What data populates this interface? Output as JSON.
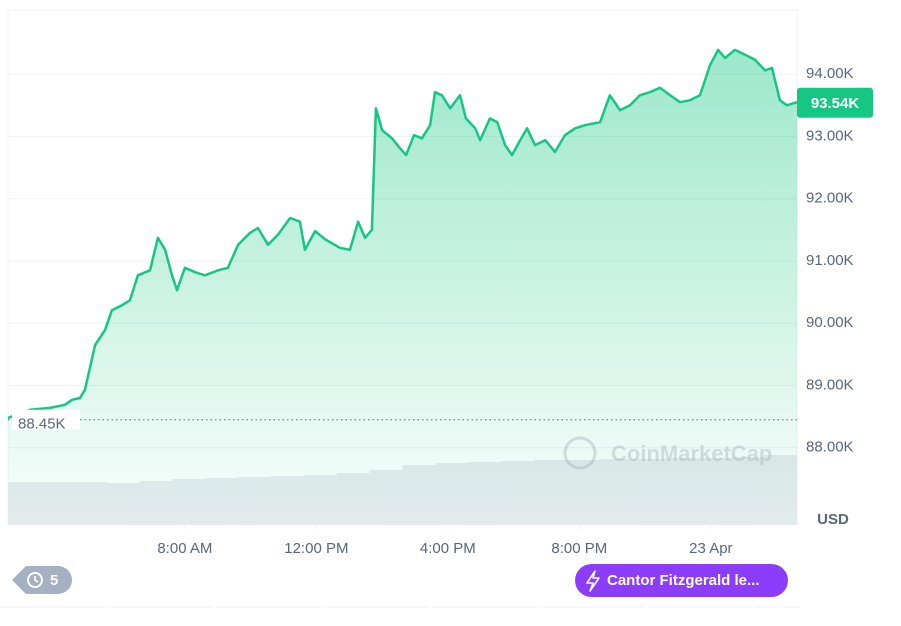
{
  "chart_data": {
    "type": "line",
    "xlim": [
      0,
      24
    ],
    "xticks": [
      {
        "value": 5.38,
        "label": "8:00 AM"
      },
      {
        "value": 9.38,
        "label": "12:00 PM"
      },
      {
        "value": 13.38,
        "label": "4:00 PM"
      },
      {
        "value": 17.38,
        "label": "8:00 PM"
      },
      {
        "value": 21.38,
        "label": "23 Apr"
      }
    ],
    "ylim": [
      86760,
      95030
    ],
    "yticks": [
      {
        "value": 88000,
        "label": "88.00K"
      },
      {
        "value": 89000,
        "label": "89.00K"
      },
      {
        "value": 90000,
        "label": "90.00K"
      },
      {
        "value": 91000,
        "label": "91.00K"
      },
      {
        "value": 92000,
        "label": "92.00K"
      },
      {
        "value": 93000,
        "label": "93.00K"
      },
      {
        "value": 94000,
        "label": "94.00K"
      }
    ],
    "grid": true,
    "currency": "USD",
    "open_price": {
      "value": 88450,
      "label": "88.45K"
    },
    "current_price": {
      "value": 93540,
      "label": "93.54K"
    },
    "watermark": "CoinMarketCap",
    "history_badge": "5",
    "news_badge": "Cantor Fitzgerald le...",
    "series": [
      {
        "color": "#16c784",
        "x": [
          0,
          0.67,
          1.28,
          1.73,
          1.95,
          2.19,
          2.34,
          2.65,
          2.95,
          3.16,
          3.47,
          3.71,
          3.95,
          4.32,
          4.56,
          4.78,
          4.99,
          5.14,
          5.38,
          5.69,
          5.99,
          6.39,
          6.69,
          7.0,
          7.36,
          7.6,
          7.91,
          8.21,
          8.58,
          8.88,
          9.03,
          9.34,
          9.64,
          10.1,
          10.4,
          10.65,
          10.86,
          11.07,
          11.19,
          11.38,
          11.68,
          11.92,
          12.11,
          12.35,
          12.59,
          12.84,
          12.99,
          13.2,
          13.45,
          13.75,
          13.93,
          14.21,
          14.36,
          14.66,
          14.88,
          15.12,
          15.33,
          15.58,
          15.79,
          16.03,
          16.34,
          16.64,
          16.94,
          17.25,
          17.55,
          18.01,
          18.31,
          18.62,
          18.92,
          19.22,
          19.53,
          19.83,
          20.14,
          20.44,
          20.74,
          21.05,
          21.35,
          21.6,
          21.81,
          22.11,
          22.42,
          22.72,
          23.03,
          23.24,
          23.48,
          23.69,
          24
        ],
        "values": [
          88480,
          88610,
          88640,
          88690,
          88770,
          88800,
          88930,
          89650,
          89890,
          90210,
          90290,
          90370,
          90770,
          90850,
          91370,
          91180,
          90770,
          90530,
          90890,
          90820,
          90770,
          90850,
          90890,
          91260,
          91450,
          91530,
          91260,
          91420,
          91690,
          91630,
          91180,
          91480,
          91350,
          91210,
          91180,
          91630,
          91370,
          91500,
          93450,
          93100,
          92970,
          92810,
          92700,
          93020,
          92970,
          93180,
          93710,
          93660,
          93450,
          93660,
          93290,
          93130,
          92940,
          93290,
          93230,
          92860,
          92700,
          92940,
          93130,
          92860,
          92940,
          92750,
          93020,
          93130,
          93180,
          93230,
          93660,
          93420,
          93500,
          93660,
          93710,
          93780,
          93660,
          93550,
          93580,
          93660,
          94140,
          94390,
          94260,
          94390,
          94310,
          94230,
          94060,
          94100,
          93580,
          93500,
          93550
        ]
      }
    ],
    "volume": {
      "color": "#e8ebef",
      "y2lim": [
        0,
        100
      ],
      "x": [
        0,
        1,
        2,
        3,
        4,
        5,
        6,
        7,
        8,
        9,
        10,
        11,
        12,
        13,
        14,
        15,
        16,
        17,
        18,
        19,
        20,
        21,
        22,
        23
      ],
      "values": [
        43,
        43,
        43,
        42,
        44,
        46,
        47,
        48,
        49,
        50,
        52,
        55,
        60,
        62,
        63,
        64,
        65,
        65,
        66,
        66,
        67,
        67,
        68,
        70
      ]
    }
  }
}
